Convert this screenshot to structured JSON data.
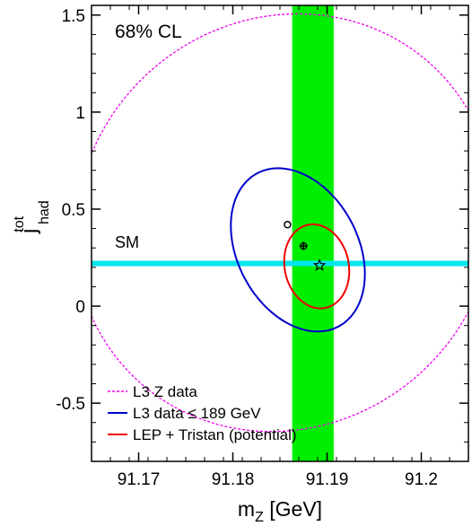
{
  "chart_data": {
    "type": "scatter",
    "title": "",
    "annotation": "68% CL",
    "xlabel": {
      "main": "m",
      "sub": "Z",
      "rest": " [GeV]"
    },
    "ylabel": {
      "main": "j",
      "sup": "tot",
      "sub": "had"
    },
    "xlim": [
      91.165,
      91.205
    ],
    "ylim": [
      -0.8,
      1.55
    ],
    "xticks": [
      91.17,
      91.18,
      91.19,
      91.2
    ],
    "xtick_labels": [
      "91.17",
      "91.18",
      "91.19",
      "91.2"
    ],
    "yticks": [
      -0.5,
      0,
      0.5,
      1,
      1.5
    ],
    "ytick_labels": [
      "-0.5",
      "0",
      "0.5",
      "1",
      "1.5"
    ],
    "bands": {
      "vertical": {
        "x_from": 91.1863,
        "x_to": 91.1907,
        "color": "#00ee00"
      },
      "horizontal": {
        "y": 0.22,
        "label": "SM",
        "color": "#00e5ee"
      }
    },
    "series": [
      {
        "name": "L3 Z data",
        "color": "#ee00ee",
        "style": "dotted",
        "ellipse": {
          "cx": 91.1855,
          "cy": 0.43,
          "rx": 0.0229,
          "ry": 0.0215,
          "angle_deg": 43
        }
      },
      {
        "name": "L3 data ≤ 189 GeV",
        "color": "#0000cc",
        "style": "solid",
        "ellipse": {
          "cx": 91.1869,
          "cy": 0.29,
          "rx": 0.0064,
          "ry": 0.0092,
          "angle_deg": 28
        }
      },
      {
        "name": "LEP + Tristan (potential)",
        "color": "#ee0000",
        "style": "solid",
        "ellipse": {
          "cx": 91.1889,
          "cy": 0.205,
          "rx": 0.0034,
          "ry": 0.0045,
          "angle_deg": 12
        }
      }
    ],
    "points": [
      {
        "marker": "circle",
        "x": 91.1858,
        "y": 0.42
      },
      {
        "marker": "cross",
        "x": 91.1875,
        "y": 0.31
      },
      {
        "marker": "star",
        "x": 91.1892,
        "y": 0.21
      }
    ],
    "legend": {
      "placement": "bottom-left"
    }
  }
}
